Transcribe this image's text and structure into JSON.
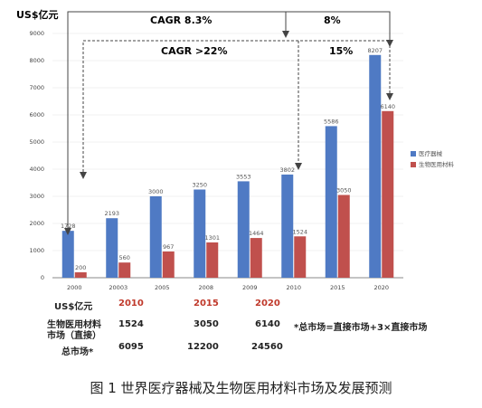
{
  "chart_data": {
    "type": "bar",
    "ylabel": "US$亿元",
    "ylim": [
      0,
      9000
    ],
    "yticks": [
      0,
      1000,
      2000,
      3000,
      4000,
      5000,
      6000,
      7000,
      8000,
      9000
    ],
    "categories": [
      "2000",
      "20003",
      "2005",
      "2008",
      "2009",
      "2010",
      "2015",
      "2020"
    ],
    "series": [
      {
        "name": "医疗器械",
        "color": "#4f7ac4",
        "values": [
          1728,
          2193,
          3000,
          3250,
          3553,
          3802,
          5586,
          8207
        ]
      },
      {
        "name": "生物医用材料",
        "color": "#c0504d",
        "values": [
          200,
          560,
          967,
          1301,
          1464,
          1524,
          3050,
          6140
        ]
      }
    ],
    "data_labels": {
      "s0": [
        "1728",
        "2193",
        "3000",
        "3250",
        "3553",
        "3802",
        "5586",
        "8207"
      ],
      "s1": [
        "200",
        "560",
        "967",
        "1301",
        "1464",
        "1524",
        "3050",
        "6140"
      ]
    },
    "legend_position": "right",
    "annotations": {
      "cagr_all": "CAGR 8.3%",
      "cagr_all_future": "8%",
      "cagr_bio": "CAGR >22%",
      "cagr_bio_future": "15%"
    }
  },
  "table": {
    "unit_label": "US$亿元",
    "years": [
      "2010",
      "2015",
      "2020"
    ],
    "bio_label_line1": "生物医用材料",
    "bio_label_line2": "市场（直接）",
    "bio_values": [
      "1524",
      "3050",
      "6140"
    ],
    "total_label": "总市场*",
    "total_values": [
      "6095",
      "12200",
      "24560"
    ],
    "footnote": "*总市场=直接市场+3×直接市场"
  },
  "caption": "图 1  世界医疗器械及生物医用材料市场及发展预测",
  "colors": {
    "accent_red": "#c0392b"
  }
}
